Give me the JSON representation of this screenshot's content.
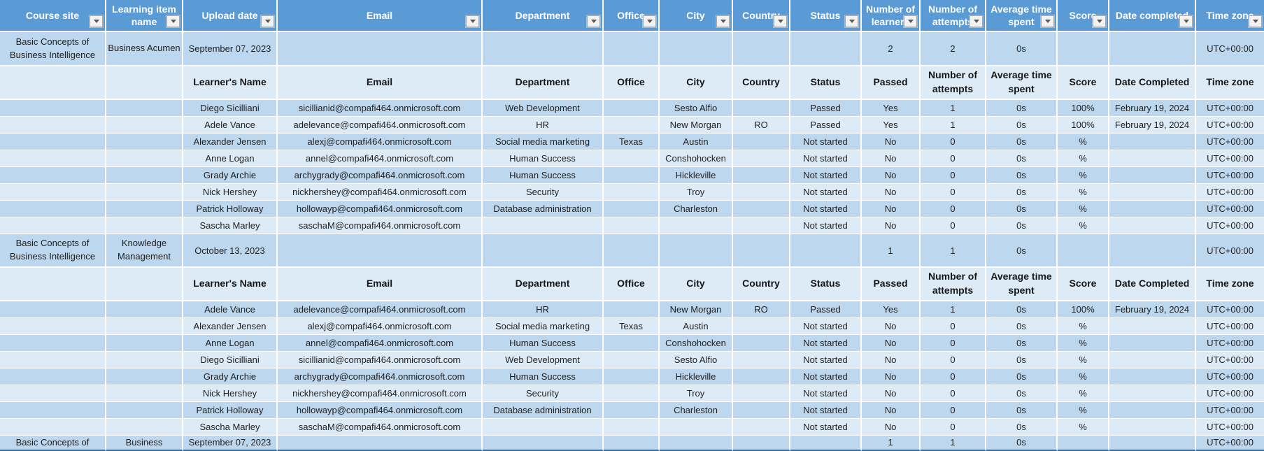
{
  "colors": {
    "header_blue": "#5b9bd5",
    "band_dark": "#bdd7ee",
    "band_light": "#ddebf7",
    "grid_white": "#ffffff",
    "header_text": "#ffffff",
    "body_text": "#1f1f1f",
    "bottom_edge_blue": "#2e75b6",
    "filter_button_bg": "#f2f2f2",
    "filter_button_border": "#a6a6a6"
  },
  "icons": {
    "filter_dropdown": "chevron-down-icon"
  },
  "columns": [
    {
      "label": "Course site",
      "filter": true
    },
    {
      "label": "Learning item name",
      "filter": true
    },
    {
      "label": "Upload date",
      "filter": true
    },
    {
      "label": "Email",
      "filter": true
    },
    {
      "label": "Department",
      "filter": true
    },
    {
      "label": "Office",
      "filter": true
    },
    {
      "label": "City",
      "filter": true
    },
    {
      "label": "Country",
      "filter": true
    },
    {
      "label": "Status",
      "filter": true
    },
    {
      "label": "Number of learners",
      "filter": true
    },
    {
      "label": "Number of attempts",
      "filter": true
    },
    {
      "label": "Average time spent",
      "filter": true
    },
    {
      "label": "Score",
      "filter": true
    },
    {
      "label": "Date completed",
      "filter": true
    },
    {
      "label": "Time zone",
      "filter": true
    }
  ],
  "sections": [
    {
      "course_site": "Basic Concepts of Business Intelligence",
      "learning_item": "Business Acumen",
      "upload_date": "September 07, 2023",
      "summary": {
        "learners": "2",
        "attempts": "2",
        "avg_time": "0s",
        "time_zone": "UTC+00:00"
      },
      "sub_header": [
        "Learner's Name",
        "Email",
        "Department",
        "Office",
        "City",
        "Country",
        "Status",
        "Passed",
        "Number of attempts",
        "Average time spent",
        "Score",
        "Date Completed",
        "Time zone"
      ],
      "rows": [
        {
          "name": "Diego Sicilliani",
          "email": "sicillianid@compafi464.onmicrosoft.com",
          "department": "Web Development",
          "office": "",
          "city": "Sesto Alfio",
          "country": "",
          "status": "Passed",
          "passed": "Yes",
          "attempts": "1",
          "avg_time": "0s",
          "score": "100%",
          "date_completed": "February 19, 2024",
          "time_zone": "UTC+00:00"
        },
        {
          "name": "Adele Vance",
          "email": "adelevance@compafi464.onmicrosoft.com",
          "department": "HR",
          "office": "",
          "city": "New Morgan",
          "country": "RO",
          "status": "Passed",
          "passed": "Yes",
          "attempts": "1",
          "avg_time": "0s",
          "score": "100%",
          "date_completed": "February 19, 2024",
          "time_zone": "UTC+00:00"
        },
        {
          "name": "Alexander Jensen",
          "email": "alexj@compafi464.onmicrosoft.com",
          "department": "Social media marketing",
          "office": "Texas",
          "city": "Austin",
          "country": "",
          "status": "Not started",
          "passed": "No",
          "attempts": "0",
          "avg_time": "0s",
          "score": "%",
          "date_completed": "",
          "time_zone": "UTC+00:00"
        },
        {
          "name": "Anne Logan",
          "email": "annel@compafi464.onmicrosoft.com",
          "department": "Human Success",
          "office": "",
          "city": "Conshohocken",
          "country": "",
          "status": "Not started",
          "passed": "No",
          "attempts": "0",
          "avg_time": "0s",
          "score": "%",
          "date_completed": "",
          "time_zone": "UTC+00:00"
        },
        {
          "name": "Grady Archie",
          "email": "archygrady@compafi464.onmicrosoft.com",
          "department": "Human Success",
          "office": "",
          "city": "Hickleville",
          "country": "",
          "status": "Not started",
          "passed": "No",
          "attempts": "0",
          "avg_time": "0s",
          "score": "%",
          "date_completed": "",
          "time_zone": "UTC+00:00"
        },
        {
          "name": "Nick Hershey",
          "email": "nickhershey@compafi464.onmicrosoft.com",
          "department": "Security",
          "office": "",
          "city": "Troy",
          "country": "",
          "status": "Not started",
          "passed": "No",
          "attempts": "0",
          "avg_time": "0s",
          "score": "%",
          "date_completed": "",
          "time_zone": "UTC+00:00"
        },
        {
          "name": "Patrick Holloway",
          "email": "hollowayp@compafi464.onmicrosoft.com",
          "department": "Database administration",
          "office": "",
          "city": "Charleston",
          "country": "",
          "status": "Not started",
          "passed": "No",
          "attempts": "0",
          "avg_time": "0s",
          "score": "%",
          "date_completed": "",
          "time_zone": "UTC+00:00"
        },
        {
          "name": "Sascha Marley",
          "email": "saschaM@compafi464.onmicrosoft.com",
          "department": "",
          "office": "",
          "city": "",
          "country": "",
          "status": "Not started",
          "passed": "No",
          "attempts": "0",
          "avg_time": "0s",
          "score": "%",
          "date_completed": "",
          "time_zone": "UTC+00:00"
        }
      ]
    },
    {
      "course_site": "Basic Concepts of Business Intelligence",
      "learning_item": "Knowledge Management",
      "upload_date": "October 13, 2023",
      "summary": {
        "learners": "1",
        "attempts": "1",
        "avg_time": "0s",
        "time_zone": "UTC+00:00"
      },
      "sub_header": [
        "Learner's Name",
        "Email",
        "Department",
        "Office",
        "City",
        "Country",
        "Status",
        "Passed",
        "Number of attempts",
        "Average time spent",
        "Score",
        "Date Completed",
        "Time zone"
      ],
      "rows": [
        {
          "name": "Adele Vance",
          "email": "adelevance@compafi464.onmicrosoft.com",
          "department": "HR",
          "office": "",
          "city": "New Morgan",
          "country": "RO",
          "status": "Passed",
          "passed": "Yes",
          "attempts": "1",
          "avg_time": "0s",
          "score": "100%",
          "date_completed": "February 19, 2024",
          "time_zone": "UTC+00:00"
        },
        {
          "name": "Alexander Jensen",
          "email": "alexj@compafi464.onmicrosoft.com",
          "department": "Social media marketing",
          "office": "Texas",
          "city": "Austin",
          "country": "",
          "status": "Not started",
          "passed": "No",
          "attempts": "0",
          "avg_time": "0s",
          "score": "%",
          "date_completed": "",
          "time_zone": "UTC+00:00"
        },
        {
          "name": "Anne Logan",
          "email": "annel@compafi464.onmicrosoft.com",
          "department": "Human Success",
          "office": "",
          "city": "Conshohocken",
          "country": "",
          "status": "Not started",
          "passed": "No",
          "attempts": "0",
          "avg_time": "0s",
          "score": "%",
          "date_completed": "",
          "time_zone": "UTC+00:00"
        },
        {
          "name": "Diego Sicilliani",
          "email": "sicillianid@compafi464.onmicrosoft.com",
          "department": "Web Development",
          "office": "",
          "city": "Sesto Alfio",
          "country": "",
          "status": "Not started",
          "passed": "No",
          "attempts": "0",
          "avg_time": "0s",
          "score": "%",
          "date_completed": "",
          "time_zone": "UTC+00:00"
        },
        {
          "name": "Grady Archie",
          "email": "archygrady@compafi464.onmicrosoft.com",
          "department": "Human Success",
          "office": "",
          "city": "Hickleville",
          "country": "",
          "status": "Not started",
          "passed": "No",
          "attempts": "0",
          "avg_time": "0s",
          "score": "%",
          "date_completed": "",
          "time_zone": "UTC+00:00"
        },
        {
          "name": "Nick Hershey",
          "email": "nickhershey@compafi464.onmicrosoft.com",
          "department": "Security",
          "office": "",
          "city": "Troy",
          "country": "",
          "status": "Not started",
          "passed": "No",
          "attempts": "0",
          "avg_time": "0s",
          "score": "%",
          "date_completed": "",
          "time_zone": "UTC+00:00"
        },
        {
          "name": "Patrick Holloway",
          "email": "hollowayp@compafi464.onmicrosoft.com",
          "department": "Database administration",
          "office": "",
          "city": "Charleston",
          "country": "",
          "status": "Not started",
          "passed": "No",
          "attempts": "0",
          "avg_time": "0s",
          "score": "%",
          "date_completed": "",
          "time_zone": "UTC+00:00"
        },
        {
          "name": "Sascha Marley",
          "email": "saschaM@compafi464.onmicrosoft.com",
          "department": "",
          "office": "",
          "city": "",
          "country": "",
          "status": "Not started",
          "passed": "No",
          "attempts": "0",
          "avg_time": "0s",
          "score": "%",
          "date_completed": "",
          "time_zone": "UTC+00:00"
        }
      ]
    },
    {
      "partial": true,
      "course_site": "Basic Concepts of",
      "learning_item": "Business",
      "upload_date": "September 07, 2023",
      "summary": {
        "learners": "1",
        "attempts": "1",
        "avg_time": "0s",
        "time_zone": "UTC+00:00"
      }
    }
  ]
}
